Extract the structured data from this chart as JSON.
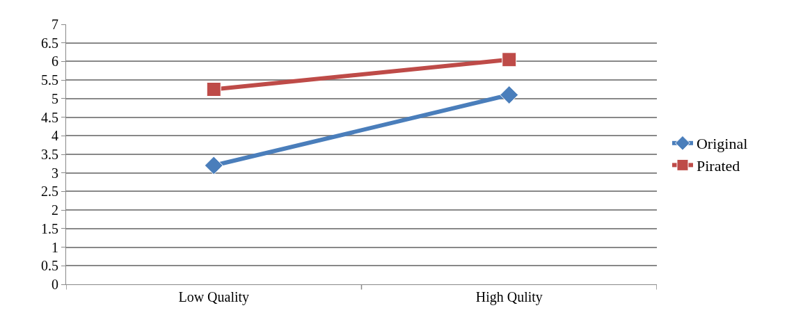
{
  "chart_data": {
    "type": "line",
    "categories": [
      "Low Quality",
      "High Qulity"
    ],
    "series": [
      {
        "name": "Original",
        "color": "#4a7ebb",
        "marker": "diamond",
        "values": [
          3.2,
          5.1
        ]
      },
      {
        "name": "Pirated",
        "color": "#be4b48",
        "marker": "square",
        "values": [
          5.25,
          6.05
        ]
      }
    ],
    "ylim": [
      0,
      7
    ],
    "yticks": [
      0,
      0.5,
      1,
      1.5,
      2,
      2.5,
      3,
      3.5,
      4,
      4.5,
      5,
      5.5,
      6,
      6.5,
      7
    ],
    "grid": "y",
    "legend": "right",
    "line_style": "solid"
  }
}
